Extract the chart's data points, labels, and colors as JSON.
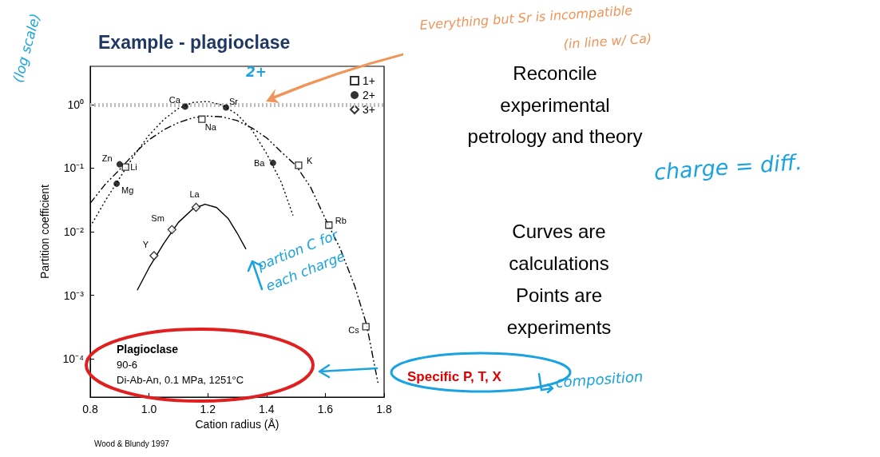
{
  "chart_data": {
    "type": "scatter",
    "title": "Example - plagioclase",
    "xlabel": "Cation radius (Å)",
    "ylabel": "Partition coefficient",
    "log": "y",
    "grid": false,
    "legend": "top right",
    "xlim": [
      0.8,
      1.8
    ],
    "xticks": [
      0.8,
      {
        "value": 1,
        "label": "1.0"
      },
      1.2,
      1.4,
      1.6,
      1.8
    ],
    "ylim": [
      2.5e-05,
      4
    ],
    "yticks": [
      {
        "value": 1,
        "label": "10⁰"
      },
      {
        "value": 0.1,
        "label": "10⁻¹"
      },
      {
        "value": 0.01,
        "label": "10⁻²"
      },
      {
        "value": 0.001,
        "label": "10⁻³"
      },
      {
        "value": 0.0001,
        "label": "10⁻⁴"
      }
    ],
    "ref_lines": [
      {
        "axis": "y",
        "value": 1,
        "color": "#bfbfbf",
        "line_style": "dotted"
      }
    ],
    "series": [
      {
        "type": "line",
        "color": "#000000",
        "line_style": "dashed",
        "x": [
          0.8,
          0.85,
          0.9,
          0.95,
          1.0,
          1.05,
          1.1,
          1.15,
          1.2,
          1.25,
          1.3,
          1.35,
          1.4,
          1.45,
          1.5,
          1.55,
          1.6,
          1.65,
          1.7,
          1.74,
          1.78
        ],
        "values": [
          0.028,
          0.055,
          0.095,
          0.17,
          0.28,
          0.4,
          0.52,
          0.62,
          0.66,
          0.64,
          0.56,
          0.43,
          0.3,
          0.18,
          0.11,
          0.05,
          0.016,
          0.0055,
          0.0014,
          0.00035,
          4e-05
        ]
      },
      {
        "type": "line",
        "color": "#000000",
        "line_style": "dotted",
        "x": [
          0.8,
          0.85,
          0.9,
          0.95,
          1.0,
          1.05,
          1.1,
          1.15,
          1.2,
          1.25,
          1.3,
          1.35,
          1.4,
          1.45,
          1.49
        ],
        "values": [
          0.012,
          0.03,
          0.07,
          0.16,
          0.33,
          0.58,
          0.87,
          1.08,
          1.12,
          0.98,
          0.7,
          0.4,
          0.17,
          0.06,
          0.018
        ]
      },
      {
        "type": "line",
        "color": "#000000",
        "line_style": "solid",
        "x": [
          0.96,
          1.0,
          1.05,
          1.1,
          1.15,
          1.19,
          1.23,
          1.27,
          1.3,
          1.33
        ],
        "values": [
          0.0012,
          0.0027,
          0.0065,
          0.014,
          0.023,
          0.027,
          0.024,
          0.016,
          0.0095,
          0.0053
        ]
      },
      {
        "type": "scatter",
        "name": "1+",
        "color": "#000000",
        "marker": "square",
        "x": [
          0.92,
          1.18,
          1.509,
          1.612,
          1.738
        ],
        "values": [
          0.104,
          0.59,
          0.111,
          0.0127,
          0.00032
        ]
      },
      {
        "type": "scatter",
        "name": "2+",
        "color": "#000000",
        "marker": "circle",
        "x": [
          0.89,
          0.9,
          1.123,
          1.262,
          1.422
        ],
        "values": [
          0.057,
          0.115,
          0.93,
          0.9,
          0.121
        ]
      },
      {
        "type": "scatter",
        "name": "3+",
        "color": "#000000",
        "marker": "diamond",
        "x": [
          1.017,
          1.078,
          1.16
        ],
        "values": [
          0.0042,
          0.0108,
          0.0242
        ]
      }
    ],
    "annotations": [
      {
        "text": "Ca",
        "x": 1.123,
        "y": 0.93
      },
      {
        "text": "Sr",
        "x": 1.262,
        "y": 0.9
      },
      {
        "text": "Na",
        "x": 1.18,
        "y": 0.59
      },
      {
        "text": "Zn",
        "x": 0.9,
        "y": 0.115
      },
      {
        "text": "Li",
        "x": 0.92,
        "y": 0.104
      },
      {
        "text": "Mg",
        "x": 0.89,
        "y": 0.057
      },
      {
        "text": "Ba",
        "x": 1.422,
        "y": 0.121
      },
      {
        "text": "K",
        "x": 1.509,
        "y": 0.111
      },
      {
        "text": "Rb",
        "x": 1.612,
        "y": 0.0127
      },
      {
        "text": "La",
        "x": 1.16,
        "y": 0.0242
      },
      {
        "text": "Sm",
        "x": 1.078,
        "y": 0.0108
      },
      {
        "text": "Y",
        "x": 1.017,
        "y": 0.0042
      },
      {
        "text": "Cs",
        "x": 1.738,
        "y": 0.00032
      },
      "Plagioclase",
      "90-6",
      "Di-Ab-An, 0.1 MPa, 1251°C",
      "Wood & Blundy 1997",
      "Reconcile experimental petrology and theory",
      "Curves are calculations",
      "Points are experiments",
      "Everything but Sr is incompatible",
      "(in line w/ Ca)",
      "2+",
      "(log scale)",
      "partion C for each charge",
      "Specific P, T, X",
      "composition",
      "charge = diff."
    ]
  }
}
